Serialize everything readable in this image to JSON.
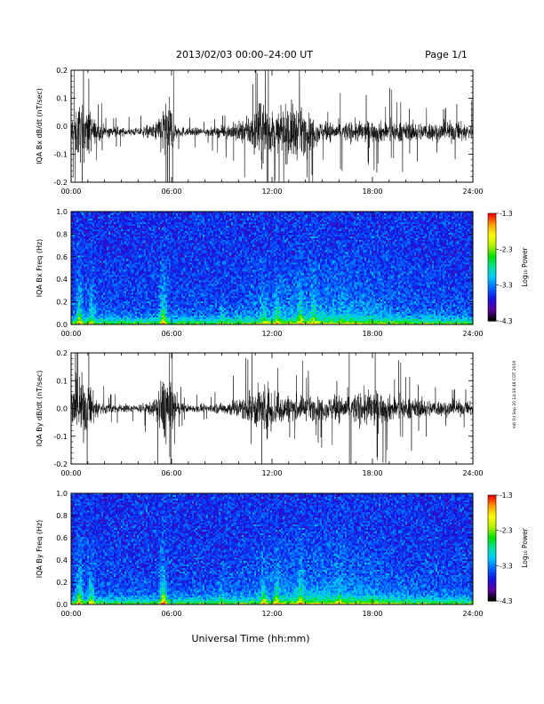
{
  "header": {
    "title": "2013/02/03  00:00–24:00 UT",
    "page": "Page 1/1"
  },
  "footer": {
    "xlabel": "Universal Time (hh:mm)",
    "side_note": "mit Fri Sep 20 14:19:48 CDT 2019"
  },
  "time_ticks": [
    "00:00",
    "06:00",
    "12:00",
    "18:00",
    "24:00"
  ],
  "colorbar": {
    "label": "Log₁₀ Power",
    "ticks": [
      "-1.3",
      "-2.3",
      "-3.3",
      "-4.3"
    ],
    "range": [
      -4.3,
      -1.3
    ],
    "colors": [
      "#000000",
      "#5a00a0",
      "#1414e0",
      "#0064ff",
      "#00c8ff",
      "#00e0a0",
      "#00e000",
      "#b4f000",
      "#ffff00",
      "#ffa000",
      "#ff0000"
    ]
  },
  "chart_data": [
    {
      "type": "line",
      "panel": "bx-waveform",
      "ylabel": "IQA Bx dB/dt (nT/sec)",
      "xlim": [
        0,
        24
      ],
      "ylim": [
        -0.2,
        0.2
      ],
      "ytick_labels": [
        "0.2",
        "0.1",
        "0.0",
        "-0.1",
        "-0.2"
      ],
      "yticks": [
        0.2,
        0.1,
        0.0,
        -0.1,
        -0.2
      ],
      "baseline": -0.02,
      "envelope_hours": [
        0,
        0.5,
        1,
        1.5,
        2,
        3,
        4,
        5,
        5.5,
        5.9,
        6.3,
        7,
        8,
        9,
        10,
        10.5,
        11,
        11.5,
        12,
        12.5,
        13,
        13.5,
        14,
        15,
        16,
        17,
        18,
        19,
        20,
        21,
        22,
        23,
        24
      ],
      "envelope_amplitude": [
        0.12,
        0.22,
        0.2,
        0.07,
        0.05,
        0.03,
        0.03,
        0.06,
        0.2,
        0.25,
        0.05,
        0.03,
        0.03,
        0.04,
        0.08,
        0.1,
        0.18,
        0.25,
        0.15,
        0.14,
        0.23,
        0.2,
        0.15,
        0.07,
        0.07,
        0.08,
        0.08,
        0.08,
        0.07,
        0.07,
        0.07,
        0.08,
        0.06
      ]
    },
    {
      "type": "heatmap",
      "panel": "bx-spectrogram",
      "ylabel": "IQA Bx Freq (Hz)",
      "xlim": [
        0,
        24
      ],
      "ylim": [
        0,
        1.0
      ],
      "ytick_labels": [
        "1.0",
        "0.8",
        "0.6",
        "0.4",
        "0.2",
        "0.0"
      ],
      "yticks": [
        1.0,
        0.8,
        0.6,
        0.4,
        0.2,
        0.0
      ],
      "zlim": [
        -4.3,
        -1.3
      ],
      "background_level": -3.6,
      "bursts_hours": [
        0.5,
        1.2,
        5.5,
        9,
        11.5,
        12.3,
        13.7,
        14.5
      ],
      "bursts_level": [
        -2.5,
        -2.8,
        -2.2,
        -3.3,
        -3.0,
        -2.9,
        -2.8,
        -3.0
      ]
    },
    {
      "type": "line",
      "panel": "by-waveform",
      "ylabel": "IQA By dB/dt (nT/sec)",
      "xlim": [
        0,
        24
      ],
      "ylim": [
        -0.2,
        0.2
      ],
      "ytick_labels": [
        "0.2",
        "0.1",
        "0.0",
        "-0.1",
        "-0.2"
      ],
      "yticks": [
        0.2,
        0.1,
        0.0,
        -0.1,
        -0.2
      ],
      "baseline": 0.0,
      "envelope_hours": [
        0,
        0.5,
        1,
        1.5,
        2,
        3,
        4,
        5,
        5.5,
        5.9,
        6.3,
        7,
        8,
        9,
        10,
        10.5,
        11,
        11.5,
        12,
        12.5,
        13,
        13.5,
        14,
        15,
        16,
        17,
        18,
        19,
        20,
        21,
        22,
        23,
        24
      ],
      "envelope_amplitude": [
        0.15,
        0.25,
        0.2,
        0.08,
        0.04,
        0.03,
        0.03,
        0.06,
        0.26,
        0.28,
        0.05,
        0.03,
        0.03,
        0.04,
        0.08,
        0.1,
        0.15,
        0.2,
        0.18,
        0.12,
        0.1,
        0.1,
        0.09,
        0.08,
        0.1,
        0.12,
        0.14,
        0.1,
        0.08,
        0.07,
        0.06,
        0.06,
        0.05
      ]
    },
    {
      "type": "heatmap",
      "panel": "by-spectrogram",
      "ylabel": "IQA By Freq (Hz)",
      "xlim": [
        0,
        24
      ],
      "ylim": [
        0,
        1.0
      ],
      "ytick_labels": [
        "1.0",
        "0.8",
        "0.6",
        "0.4",
        "0.2",
        "0.0"
      ],
      "yticks": [
        1.0,
        0.8,
        0.6,
        0.4,
        0.2,
        0.0
      ],
      "zlim": [
        -4.3,
        -1.3
      ],
      "background_level": -3.6,
      "bursts_hours": [
        0.5,
        1.2,
        5.5,
        9,
        11.5,
        12.3,
        13.7,
        16
      ],
      "bursts_level": [
        -2.4,
        -2.7,
        -2.1,
        -3.3,
        -2.9,
        -2.8,
        -2.8,
        -3.1
      ]
    }
  ]
}
